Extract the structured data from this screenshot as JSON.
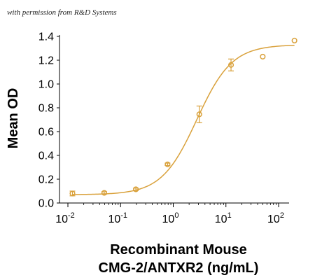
{
  "watermark": "with permission from R&D Systems",
  "chart_data": {
    "type": "scatter",
    "xscale": "log",
    "xlabel_lines": [
      "Recombinant Mouse",
      "CMG-2/ANTXR2 (ng/mL)"
    ],
    "ylabel": "Mean OD",
    "xlim": [
      0.01,
      300
    ],
    "ylim": [
      0,
      1.4
    ],
    "xticks": [
      {
        "base": "10",
        "exp": "-2",
        "value": 0.01
      },
      {
        "base": "10",
        "exp": "-1",
        "value": 0.1
      },
      {
        "base": "10",
        "exp": "0",
        "value": 1
      },
      {
        "base": "10",
        "exp": "1",
        "value": 10
      },
      {
        "base": "10",
        "exp": "2",
        "value": 100
      }
    ],
    "yticks": [
      {
        "label": "0.0",
        "value": 0.0
      },
      {
        "label": "0.2",
        "value": 0.2
      },
      {
        "label": "0.4",
        "value": 0.4
      },
      {
        "label": "0.6",
        "value": 0.6
      },
      {
        "label": "0.8",
        "value": 0.8
      },
      {
        "label": "1.0",
        "value": 1.0
      },
      {
        "label": "1.2",
        "value": 1.2
      },
      {
        "label": "1.4",
        "value": 1.4
      }
    ],
    "color": "#D9A13B",
    "series": [
      {
        "points": [
          {
            "x": 0.0122,
            "y": 0.08,
            "err": 0.02
          },
          {
            "x": 0.049,
            "y": 0.085,
            "err": 0.01
          },
          {
            "x": 0.195,
            "y": 0.115,
            "err": 0.01
          },
          {
            "x": 0.78,
            "y": 0.325,
            "err": 0.01
          },
          {
            "x": 3.125,
            "y": 0.745,
            "err": 0.07
          },
          {
            "x": 12.5,
            "y": 1.16,
            "err": 0.05
          },
          {
            "x": 50,
            "y": 1.23,
            "err": 0
          },
          {
            "x": 200,
            "y": 1.365,
            "err": 0
          }
        ],
        "fit": {
          "model": "4PL",
          "bottom": 0.07,
          "top": 1.33,
          "ec50": 2.8,
          "hill": 1.3
        }
      }
    ]
  }
}
